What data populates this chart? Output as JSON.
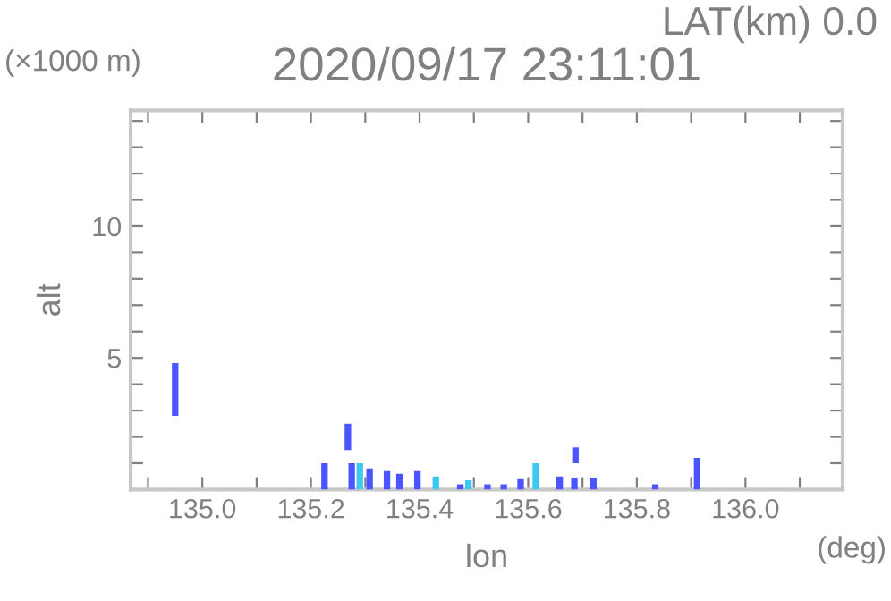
{
  "chart_data": {
    "type": "bar",
    "title": "2020/09/17 23:11:01",
    "subtitle": "LAT(km) 0.0",
    "xlabel": "lon",
    "ylabel": "alt",
    "annotations": [
      "(×1000 m)",
      "(deg)"
    ],
    "x": [
      134.95,
      135.225,
      135.268,
      135.275,
      135.29,
      135.308,
      135.34,
      135.363,
      135.396,
      135.43,
      135.475,
      135.49,
      135.525,
      135.555,
      135.586,
      135.614,
      135.658,
      135.685,
      135.687,
      135.72,
      135.834,
      135.911
    ],
    "base": [
      2.8,
      0,
      1.5,
      0,
      0,
      0,
      0,
      0,
      0,
      0,
      0,
      0,
      0,
      0,
      0,
      0,
      0,
      0,
      1.0,
      0,
      0,
      0
    ],
    "values": [
      2.0,
      1.0,
      1.0,
      1.0,
      1.0,
      0.8,
      0.7,
      0.6,
      0.7,
      0.5,
      0.2,
      0.35,
      0.2,
      0.2,
      0.4,
      1.0,
      0.5,
      0.45,
      0.6,
      0.45,
      0.2,
      1.2
    ],
    "colors": [
      "#4a55ff",
      "#4a55ff",
      "#4a55ff",
      "#4a55ff",
      "#3cc8f0",
      "#4a55ff",
      "#4a55ff",
      "#4a55ff",
      "#4a55ff",
      "#3cc8f0",
      "#4a55ff",
      "#3cc8f0",
      "#4a55ff",
      "#4a55ff",
      "#4a55ff",
      "#3cc8f0",
      "#4a55ff",
      "#4a55ff",
      "#4a55ff",
      "#4a55ff",
      "#4a55ff",
      "#4a55ff"
    ],
    "xlim": [
      134.868,
      136.179
    ],
    "xticks": [
      {
        "value": 134.9,
        "label": null
      },
      {
        "value": 135.0,
        "label": "135.0"
      },
      {
        "value": 135.1,
        "label": null
      },
      135.2,
      {
        "value": 135.3,
        "label": null
      },
      135.4,
      {
        "value": 135.5,
        "label": null
      },
      135.6,
      {
        "value": 135.7,
        "label": null
      },
      135.8,
      {
        "value": 135.9,
        "label": null
      },
      {
        "value": 136.0,
        "label": "136.0"
      },
      {
        "value": 136.1,
        "label": null
      }
    ],
    "ylim": [
      0,
      14.4
    ],
    "yticks": [
      {
        "value": 1,
        "label": null
      },
      {
        "value": 2,
        "label": null
      },
      {
        "value": 3,
        "label": null
      },
      {
        "value": 4,
        "label": null
      },
      5,
      {
        "value": 6,
        "label": null
      },
      {
        "value": 7,
        "label": null
      },
      {
        "value": 8,
        "label": null
      },
      {
        "value": 9,
        "label": null
      },
      10,
      {
        "value": 11,
        "label": null
      },
      {
        "value": 12,
        "label": null
      },
      {
        "value": 13,
        "label": null
      },
      {
        "value": 14,
        "label": null
      }
    ],
    "grid": false
  }
}
